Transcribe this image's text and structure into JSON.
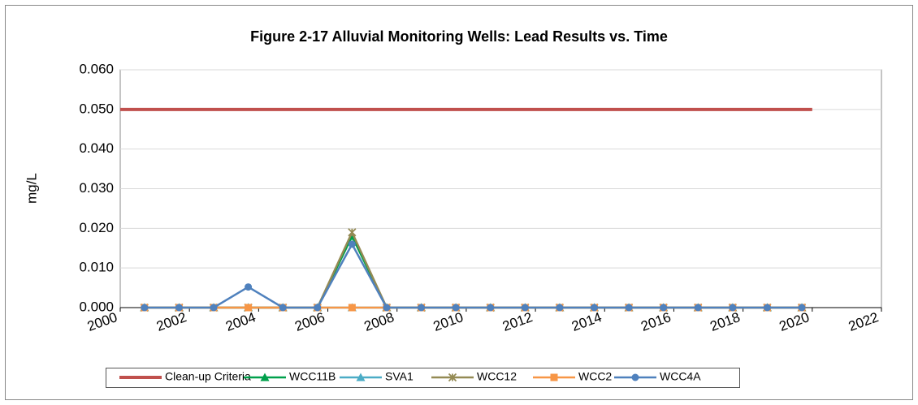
{
  "chart_data": {
    "type": "line",
    "title": "Figure 2-17 Alluvial Monitoring Wells: Lead Results vs. Time",
    "y_label": "mg/L",
    "xlim": [
      2000,
      2022
    ],
    "xticks": [
      2000,
      2002,
      2004,
      2006,
      2008,
      2010,
      2012,
      2014,
      2016,
      2018,
      2020,
      2022
    ],
    "ylim": [
      0,
      0.06
    ],
    "yticks": [
      {
        "value": 0,
        "label": "0.000"
      },
      {
        "value": 0.01,
        "label": "0.010"
      },
      {
        "value": 0.02,
        "label": "0.020"
      },
      {
        "value": 0.03,
        "label": "0.030"
      },
      {
        "value": 0.04,
        "label": "0.040"
      },
      {
        "value": 0.05,
        "label": "0.050"
      },
      {
        "value": 0.06,
        "label": "0.060"
      }
    ],
    "grid": true,
    "legend": "bottom",
    "series": [
      {
        "name": "Clean-up Criteria",
        "color": "#c0504d",
        "marker": "none",
        "x": [
          2000,
          2020
        ],
        "values": [
          0.05,
          0.05
        ]
      },
      {
        "name": "WCC11B",
        "color": "#00a04b",
        "marker": "triangle",
        "x": [
          2000.7,
          2001.7,
          2002.7,
          2003.7,
          2004.7,
          2005.7,
          2006.7,
          2007.7,
          2008.7,
          2009.7,
          2010.7,
          2011.7,
          2012.7,
          2013.7,
          2014.7,
          2015.7,
          2016.7,
          2017.7,
          2018.7,
          2019.7
        ],
        "values": [
          0,
          0,
          0,
          0,
          0,
          0,
          0.018,
          0,
          0,
          0,
          0,
          0,
          0,
          0,
          0,
          0,
          0,
          0,
          0,
          0
        ]
      },
      {
        "name": "SVA1",
        "color": "#4bacc6",
        "marker": "triangle",
        "x": [
          2000.7,
          2001.7,
          2002.7,
          2003.7,
          2004.7,
          2005.7,
          2006.7,
          2007.7,
          2008.7,
          2009.7,
          2010.7,
          2011.7,
          2012.7,
          2013.7,
          2014.7,
          2015.7,
          2016.7,
          2017.7,
          2018.7,
          2019.7
        ],
        "values": [
          0,
          0,
          0,
          0,
          0,
          0,
          0,
          0,
          0,
          0,
          0,
          0,
          0,
          0,
          0,
          0,
          0,
          0,
          0,
          0
        ]
      },
      {
        "name": "WCC12",
        "color": "#948a54",
        "marker": "star",
        "x": [
          2000.7,
          2001.7,
          2002.7,
          2003.7,
          2004.7,
          2005.7,
          2006.7,
          2007.7,
          2008.7,
          2009.7,
          2010.7,
          2011.7,
          2012.7,
          2013.7,
          2014.7,
          2015.7,
          2016.7,
          2017.7,
          2018.7,
          2019.7
        ],
        "values": [
          0,
          0,
          0,
          0,
          0,
          0,
          0.019,
          0,
          0,
          0,
          0,
          0,
          0,
          0,
          0,
          0,
          0,
          0,
          0,
          0
        ]
      },
      {
        "name": "WCC2",
        "color": "#f79646",
        "marker": "square",
        "x": [
          2000.7,
          2001.7,
          2002.7,
          2003.7,
          2004.7,
          2005.7,
          2006.7,
          2007.7,
          2008.7,
          2009.7,
          2010.7,
          2011.7,
          2012.7,
          2013.7,
          2014.7,
          2015.7,
          2016.7,
          2017.7,
          2018.7,
          2019.7
        ],
        "values": [
          0,
          0,
          0,
          0,
          0,
          0,
          0,
          0,
          0,
          0,
          0,
          0,
          0,
          0,
          0,
          0,
          0,
          0,
          0,
          0
        ]
      },
      {
        "name": "WCC4A",
        "color": "#4f81bd",
        "marker": "circle",
        "x": [
          2000.7,
          2001.7,
          2002.7,
          2003.7,
          2004.7,
          2005.7,
          2006.7,
          2007.7,
          2008.7,
          2009.7,
          2010.7,
          2011.7,
          2012.7,
          2013.7,
          2014.7,
          2015.7,
          2016.7,
          2017.7,
          2018.7,
          2019.7
        ],
        "values": [
          0,
          0,
          0,
          0.0052,
          0,
          0,
          0.016,
          0,
          0,
          0,
          0,
          0,
          0,
          0,
          0,
          0,
          0,
          0,
          0,
          0
        ]
      }
    ]
  }
}
